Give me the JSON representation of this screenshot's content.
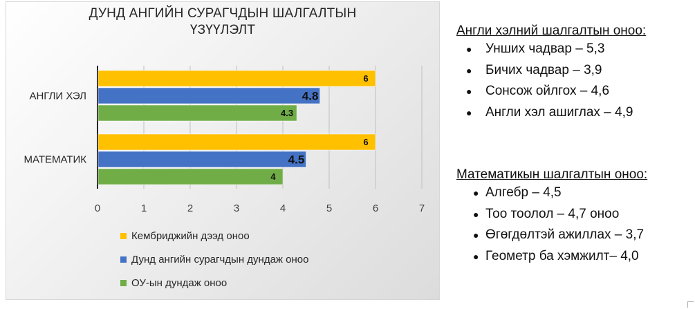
{
  "chart_data": {
    "type": "bar",
    "orientation": "horizontal",
    "title_lines": [
      "ДУНД АНГИЙН СУРАГЧДЫН ШАЛГАЛТЫН",
      "ҮЗҮҮЛЭЛТ"
    ],
    "categories": [
      "АНГЛИ ХЭЛ",
      "МАТЕМАТИК"
    ],
    "series": [
      {
        "name": "Кембриджийн дээд оноо",
        "values": [
          6,
          6
        ],
        "labels": [
          "6",
          "6"
        ],
        "color": "#FFC000"
      },
      {
        "name": "Дунд ангийн сурагчдын дундаж оноо",
        "values": [
          4.8,
          4.5
        ],
        "labels": [
          "4.8",
          "4.5"
        ],
        "color": "#4472C4"
      },
      {
        "name": "ОУ-ын дундаж оноо",
        "values": [
          4.3,
          4
        ],
        "labels": [
          "4.3",
          "4"
        ],
        "color": "#70AD47"
      }
    ],
    "x_ticks": [
      "0",
      "1",
      "2",
      "3",
      "4",
      "5",
      "6",
      "7"
    ],
    "xlim": [
      0,
      7
    ],
    "grid": true,
    "legend_position": "bottom"
  },
  "english_scores": {
    "heading": "Англи хэлний шалгалтын оноо:",
    "items": [
      "Унших чадвар – 5,3",
      "Бичих чадвар – 3,9",
      "Сонсож ойлгох – 4,6",
      "Англи хэл ашиглах – 4,9"
    ]
  },
  "math_scores": {
    "heading": "Математикын шалгалтын оноо:",
    "items": [
      "Алгебр – 4,5",
      "Тоо тоолол – 4,7 оноо",
      "Өгөгдөлтэй ажиллах – 3,7",
      "Геометр ба хэмжилт– 4,0"
    ]
  }
}
